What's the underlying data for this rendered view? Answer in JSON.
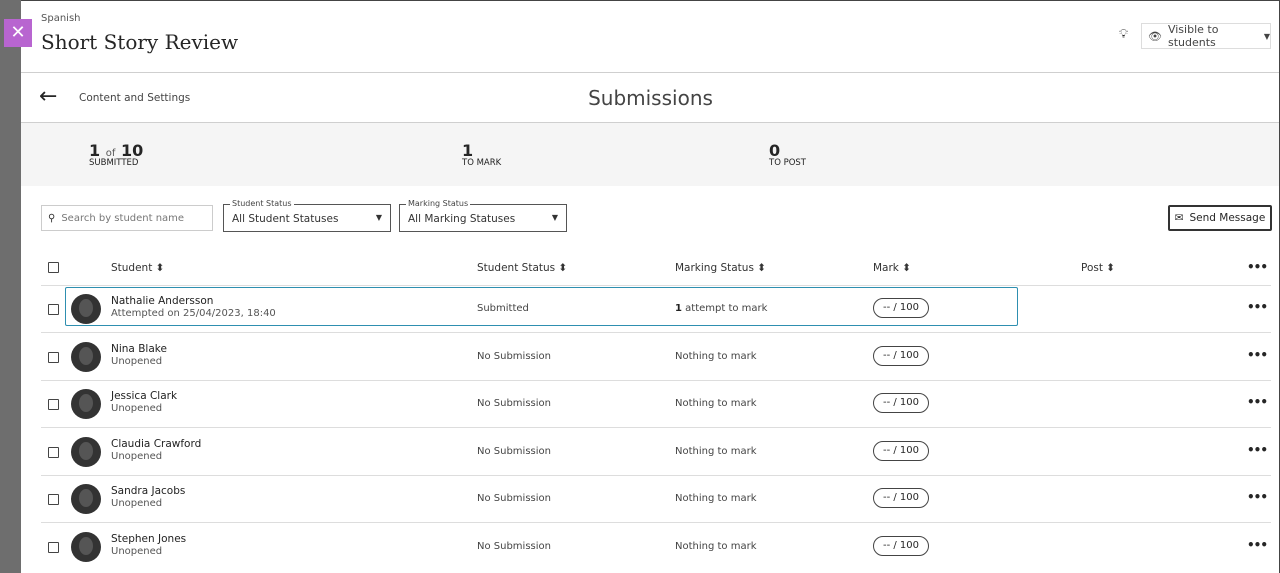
{
  "header": {
    "course": "Spanish",
    "title": "Short Story Review",
    "visibility": "Visible to students"
  },
  "nav": {
    "back_label": "Content and Settings",
    "page_title": "Submissions"
  },
  "stats": {
    "submitted": "1",
    "of": "of",
    "total": "10",
    "submitted_label": "SUBMITTED",
    "to_mark": "1",
    "to_mark_label": "TO MARK",
    "to_post": "0",
    "to_post_label": "TO POST"
  },
  "filters": {
    "search_placeholder": "Search by student name",
    "student_status_label": "Student Status",
    "student_status_value": "All Student Statuses",
    "marking_status_label": "Marking Status",
    "marking_status_value": "All Marking Statuses",
    "send_message": "Send Message"
  },
  "columns": {
    "student": "Student ⬍",
    "student_status": "Student Status ⬍",
    "marking_status": "Marking Status ⬍",
    "mark": "Mark ⬍",
    "post": "Post ⬍"
  },
  "rows": [
    {
      "name": "Nathalie Andersson",
      "sub": "Attempted on 25/04/2023, 18:40",
      "status": "Submitted",
      "marking_count": "1",
      "marking": "attempt to mark",
      "mark": "--  / 100"
    },
    {
      "name": "Nina Blake",
      "sub": "Unopened",
      "status": "No Submission",
      "marking": "Nothing to mark",
      "mark": "--  / 100"
    },
    {
      "name": "Jessica Clark",
      "sub": "Unopened",
      "status": "No Submission",
      "marking": "Nothing to mark",
      "mark": "--  / 100"
    },
    {
      "name": "Claudia Crawford",
      "sub": "Unopened",
      "status": "No Submission",
      "marking": "Nothing to mark",
      "mark": "--  / 100"
    },
    {
      "name": "Sandra Jacobs",
      "sub": "Unopened",
      "status": "No Submission",
      "marking": "Nothing to mark",
      "mark": "--  / 100"
    },
    {
      "name": "Stephen Jones",
      "sub": "Unopened",
      "status": "No Submission",
      "marking": "Nothing to mark",
      "mark": "--  / 100"
    }
  ],
  "colors": {
    "close": "#b865d0",
    "selected_row": "#2e8fb0"
  }
}
